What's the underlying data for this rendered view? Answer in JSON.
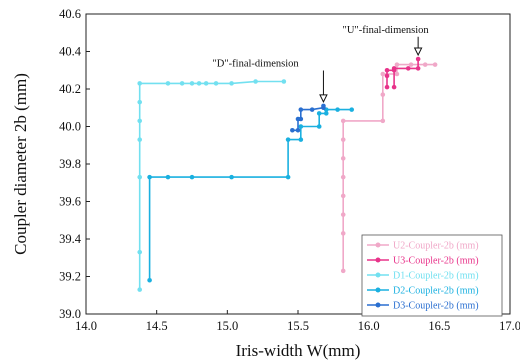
{
  "chart_data": {
    "type": "line",
    "xlabel": "Iris-width W(mm)",
    "ylabel": "Coupler diameter 2b (mm)",
    "xlim": [
      14.0,
      17.0
    ],
    "ylim": [
      39.0,
      40.6
    ],
    "x_ticks": [
      14.0,
      14.5,
      15.0,
      15.5,
      16.0,
      16.5,
      17.0
    ],
    "x_tick_labels": [
      "14.0",
      "14.5",
      "15.0",
      "15.5",
      "16.0",
      "16.5",
      "17.0"
    ],
    "y_ticks": [
      39.0,
      39.2,
      39.4,
      39.6,
      39.8,
      40.0,
      40.2,
      40.4,
      40.6
    ],
    "y_tick_labels": [
      "39.0",
      "39.2",
      "39.4",
      "39.6",
      "39.8",
      "40.0",
      "40.2",
      "40.4",
      "40.6"
    ],
    "grid": false,
    "legend_position": "bottom-right",
    "series": [
      {
        "name": "U2-Coupler-2b (mm)",
        "color": "#f0a8c8",
        "points": [
          [
            15.82,
            39.23
          ],
          [
            15.82,
            39.43
          ],
          [
            15.82,
            39.53
          ],
          [
            15.82,
            39.63
          ],
          [
            15.82,
            39.73
          ],
          [
            15.82,
            39.83
          ],
          [
            15.82,
            39.93
          ],
          [
            15.82,
            40.03
          ],
          [
            16.1,
            40.03
          ],
          [
            16.1,
            40.17
          ],
          [
            16.1,
            40.28
          ],
          [
            16.2,
            40.28
          ],
          [
            16.2,
            40.33
          ],
          [
            16.3,
            40.33
          ],
          [
            16.4,
            40.33
          ],
          [
            16.47,
            40.33
          ]
        ]
      },
      {
        "name": "U3-Coupler-2b (mm)",
        "color": "#e8338a",
        "points": [
          [
            16.13,
            40.21
          ],
          [
            16.13,
            40.27
          ],
          [
            16.13,
            40.3
          ],
          [
            16.18,
            40.3
          ],
          [
            16.18,
            40.21
          ],
          [
            16.18,
            40.31
          ],
          [
            16.28,
            40.31
          ],
          [
            16.35,
            40.31
          ],
          [
            16.35,
            40.36
          ]
        ]
      },
      {
        "name": "D1-Coupler-2b (mm)",
        "color": "#72e0f0",
        "points": [
          [
            14.38,
            39.13
          ],
          [
            14.38,
            39.33
          ],
          [
            14.38,
            39.73
          ],
          [
            14.38,
            39.93
          ],
          [
            14.38,
            40.03
          ],
          [
            14.38,
            40.13
          ],
          [
            14.38,
            40.23
          ],
          [
            14.58,
            40.23
          ],
          [
            14.68,
            40.23
          ],
          [
            14.75,
            40.23
          ],
          [
            14.8,
            40.23
          ],
          [
            14.85,
            40.23
          ],
          [
            14.92,
            40.23
          ],
          [
            15.03,
            40.23
          ],
          [
            15.2,
            40.24
          ],
          [
            15.4,
            40.24
          ]
        ]
      },
      {
        "name": "D2-Coupler-2b (mm)",
        "color": "#1ab0e0",
        "points": [
          [
            14.45,
            39.18
          ],
          [
            14.45,
            39.73
          ],
          [
            14.58,
            39.73
          ],
          [
            14.75,
            39.73
          ],
          [
            15.03,
            39.73
          ],
          [
            15.43,
            39.73
          ],
          [
            15.43,
            39.93
          ],
          [
            15.52,
            39.93
          ],
          [
            15.52,
            40.0
          ],
          [
            15.65,
            40.0
          ],
          [
            15.65,
            40.07
          ],
          [
            15.7,
            40.07
          ],
          [
            15.7,
            40.09
          ],
          [
            15.78,
            40.09
          ],
          [
            15.88,
            40.09
          ]
        ]
      },
      {
        "name": "D3-Coupler-2b (mm)",
        "color": "#2a6fd0",
        "points": [
          [
            15.46,
            39.98
          ],
          [
            15.5,
            39.98
          ],
          [
            15.5,
            40.04
          ],
          [
            15.52,
            40.04
          ],
          [
            15.52,
            40.09
          ],
          [
            15.6,
            40.09
          ],
          [
            15.68,
            40.1
          ],
          [
            15.68,
            40.11
          ]
        ]
      }
    ],
    "annotations": [
      {
        "text": "\"U\"-final-dimension",
        "x": 16.35,
        "y": 40.36
      },
      {
        "text": "\"D\"-final-dimension",
        "x": 15.68,
        "y": 40.11
      }
    ]
  }
}
